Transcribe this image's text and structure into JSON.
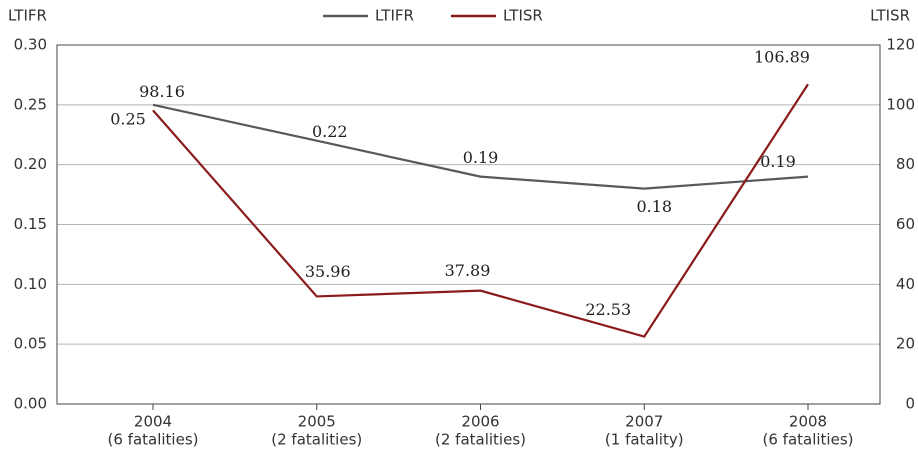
{
  "chart_data": {
    "type": "line",
    "y_label": "LTIFR",
    "y2_label": "LTISR",
    "categories": [
      "2004",
      "2005",
      "2006",
      "2007",
      "2008"
    ],
    "category_notes": [
      "(6 fatalities)",
      "(2 fatalities)",
      "(2 fatalities)",
      "(1 fatality)",
      "(6 fatalities)"
    ],
    "series": [
      {
        "name": "LTIFR",
        "color": "#58595b",
        "values": [
          0.25,
          0.22,
          0.19,
          0.18,
          0.19
        ]
      },
      {
        "name": "LTISR",
        "color": "#8b1a1a",
        "axis": "y2",
        "values": [
          98.16,
          35.96,
          37.89,
          22.53,
          106.89
        ]
      }
    ],
    "ylim": [
      0,
      0.3
    ],
    "yticks": [
      {
        "value": 0,
        "label": "0.00"
      },
      0.05,
      {
        "value": 0.1,
        "label": "0.10"
      },
      0.15,
      {
        "value": 0.2,
        "label": "0.20"
      },
      0.25,
      {
        "value": 0.3,
        "label": "0.30"
      }
    ],
    "y2lim": [
      0,
      120
    ],
    "y2ticks": [
      0,
      20,
      40,
      60,
      80,
      100,
      120
    ],
    "grid": true,
    "legend": "top"
  }
}
